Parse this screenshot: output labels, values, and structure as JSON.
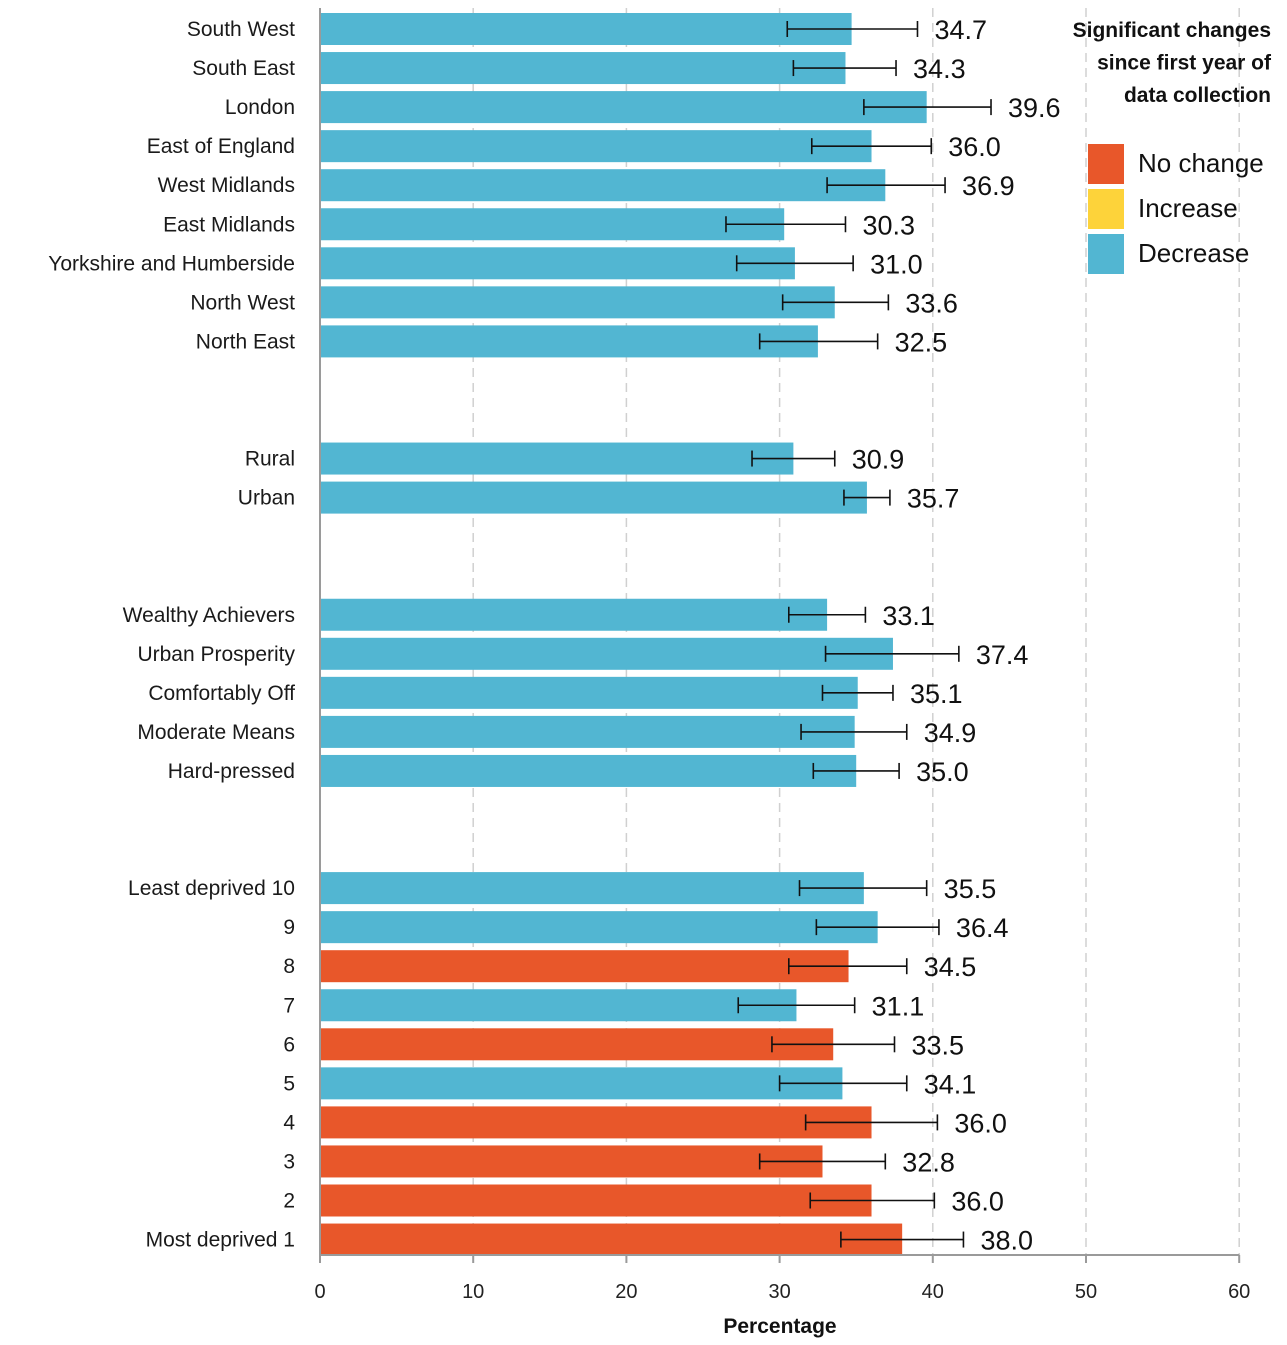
{
  "chart_data": {
    "type": "bar",
    "orientation": "horizontal",
    "title": "",
    "xlabel": "Percentage",
    "ylabel": "",
    "xlim": [
      0,
      60
    ],
    "xticks": [
      0,
      10,
      20,
      30,
      40,
      50,
      60
    ],
    "grid": "vertical dashed",
    "legend": {
      "title": "Significant changes since first year of data collection",
      "title_lines": [
        "Significant changes",
        "since first year of",
        "data collection"
      ],
      "placement": "top-right",
      "entries": [
        {
          "label": "No change",
          "color": "#e8572a"
        },
        {
          "label": "Increase",
          "color": "#fdd33a"
        },
        {
          "label": "Decrease",
          "color": "#52b6d2"
        }
      ]
    },
    "groups": [
      {
        "name": "",
        "bars": [
          {
            "label": "South West",
            "value": 34.7,
            "ci_low": 30.5,
            "ci_high": 39.0,
            "status": "Decrease"
          },
          {
            "label": "South East",
            "value": 34.3,
            "ci_low": 30.9,
            "ci_high": 37.6,
            "status": "Decrease"
          },
          {
            "label": "London",
            "value": 39.6,
            "ci_low": 35.5,
            "ci_high": 43.8,
            "status": "Decrease"
          },
          {
            "label": "East of England",
            "value": 36.0,
            "ci_low": 32.1,
            "ci_high": 39.9,
            "status": "Decrease"
          },
          {
            "label": "West Midlands",
            "value": 36.9,
            "ci_low": 33.1,
            "ci_high": 40.8,
            "status": "Decrease"
          },
          {
            "label": "East Midlands",
            "value": 30.3,
            "ci_low": 26.5,
            "ci_high": 34.3,
            "status": "Decrease"
          },
          {
            "label": "Yorkshire and Humberside",
            "value": 31.0,
            "ci_low": 27.2,
            "ci_high": 34.8,
            "status": "Decrease"
          },
          {
            "label": "North West",
            "value": 33.6,
            "ci_low": 30.2,
            "ci_high": 37.1,
            "status": "Decrease"
          },
          {
            "label": "North East",
            "value": 32.5,
            "ci_low": 28.7,
            "ci_high": 36.4,
            "status": "Decrease"
          }
        ]
      },
      {
        "name": "",
        "bars": [
          {
            "label": "Rural",
            "value": 30.9,
            "ci_low": 28.2,
            "ci_high": 33.6,
            "status": "Decrease"
          },
          {
            "label": "Urban",
            "value": 35.7,
            "ci_low": 34.2,
            "ci_high": 37.2,
            "status": "Decrease"
          }
        ]
      },
      {
        "name": "",
        "bars": [
          {
            "label": "Wealthy Achievers",
            "value": 33.1,
            "ci_low": 30.6,
            "ci_high": 35.6,
            "status": "Decrease"
          },
          {
            "label": "Urban Prosperity",
            "value": 37.4,
            "ci_low": 33.0,
            "ci_high": 41.7,
            "status": "Decrease"
          },
          {
            "label": "Comfortably Off",
            "value": 35.1,
            "ci_low": 32.8,
            "ci_high": 37.4,
            "status": "Decrease"
          },
          {
            "label": "Moderate Means",
            "value": 34.9,
            "ci_low": 31.4,
            "ci_high": 38.3,
            "status": "Decrease"
          },
          {
            "label": "Hard-pressed",
            "value": 35.0,
            "ci_low": 32.2,
            "ci_high": 37.8,
            "status": "Decrease"
          }
        ]
      },
      {
        "name": "",
        "bars": [
          {
            "label": "Least deprived 10",
            "value": 35.5,
            "ci_low": 31.3,
            "ci_high": 39.6,
            "status": "Decrease"
          },
          {
            "label": "9",
            "value": 36.4,
            "ci_low": 32.4,
            "ci_high": 40.4,
            "status": "Decrease"
          },
          {
            "label": "8",
            "value": 34.5,
            "ci_low": 30.6,
            "ci_high": 38.3,
            "status": "No change"
          },
          {
            "label": "7",
            "value": 31.1,
            "ci_low": 27.3,
            "ci_high": 34.9,
            "status": "Decrease"
          },
          {
            "label": "6",
            "value": 33.5,
            "ci_low": 29.5,
            "ci_high": 37.5,
            "status": "No change"
          },
          {
            "label": "5",
            "value": 34.1,
            "ci_low": 30.0,
            "ci_high": 38.3,
            "status": "Decrease"
          },
          {
            "label": "4",
            "value": 36.0,
            "ci_low": 31.7,
            "ci_high": 40.3,
            "status": "No change"
          },
          {
            "label": "3",
            "value": 32.8,
            "ci_low": 28.7,
            "ci_high": 36.9,
            "status": "No change"
          },
          {
            "label": "2",
            "value": 36.0,
            "ci_low": 32.0,
            "ci_high": 40.1,
            "status": "No change"
          },
          {
            "label": "Most deprived 1",
            "value": 38.0,
            "ci_low": 34.0,
            "ci_high": 42.0,
            "status": "No change"
          }
        ]
      }
    ]
  }
}
